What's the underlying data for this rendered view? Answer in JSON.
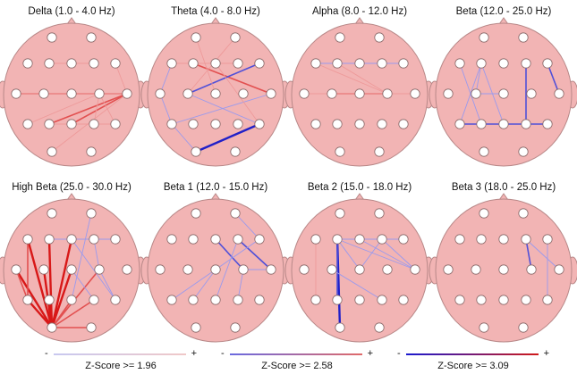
{
  "colors": {
    "head_fill": "#f2b4b4",
    "head_stroke": "#b88888",
    "electrode_fill": "#ffffff",
    "electrode_stroke": "#8a6a6a",
    "positive": "#e02020",
    "negative": "#3030d0"
  },
  "panels": [
    {
      "title": "Delta (1.0 - 4.0 Hz)",
      "connections": [
        {
          "a": "T3",
          "b": "T4",
          "sign": "pos",
          "weight": 2
        },
        {
          "a": "T3",
          "b": "C4",
          "sign": "pos",
          "weight": 1
        },
        {
          "a": "C3",
          "b": "T4",
          "sign": "pos",
          "weight": 1
        },
        {
          "a": "T5",
          "b": "C4",
          "sign": "pos",
          "weight": 1
        },
        {
          "a": "P3",
          "b": "T4",
          "sign": "pos",
          "weight": 2
        },
        {
          "a": "Pz",
          "b": "T4",
          "sign": "pos",
          "weight": 2
        },
        {
          "a": "O1",
          "b": "T4",
          "sign": "pos",
          "weight": 1
        },
        {
          "a": "P4",
          "b": "C4",
          "sign": "pos",
          "weight": 1
        },
        {
          "a": "T6",
          "b": "C4",
          "sign": "pos",
          "weight": 1
        },
        {
          "a": "F3",
          "b": "F4",
          "sign": "pos",
          "weight": 1
        },
        {
          "a": "P3",
          "b": "T6",
          "sign": "pos",
          "weight": 1
        },
        {
          "a": "F8",
          "b": "T4",
          "sign": "pos",
          "weight": 1
        }
      ]
    },
    {
      "title": "Theta (4.0 - 8.0 Hz)",
      "connections": [
        {
          "a": "F3",
          "b": "T4",
          "sign": "pos",
          "weight": 2
        },
        {
          "a": "F7",
          "b": "F4",
          "sign": "pos",
          "weight": 1
        },
        {
          "a": "Fp2",
          "b": "C3",
          "sign": "pos",
          "weight": 1
        },
        {
          "a": "F8",
          "b": "C3",
          "sign": "neg",
          "weight": 2
        },
        {
          "a": "T4",
          "b": "T5",
          "sign": "neg",
          "weight": 1
        },
        {
          "a": "T6",
          "b": "O1",
          "sign": "neg",
          "weight": 3
        },
        {
          "a": "F7",
          "b": "T3",
          "sign": "neg",
          "weight": 1
        },
        {
          "a": "T3",
          "b": "T5",
          "sign": "neg",
          "weight": 1
        },
        {
          "a": "C3",
          "b": "T6",
          "sign": "neg",
          "weight": 1
        },
        {
          "a": "T5",
          "b": "O1",
          "sign": "neg",
          "weight": 1
        },
        {
          "a": "Fp1",
          "b": "Cz",
          "sign": "pos",
          "weight": 1
        },
        {
          "a": "Fz",
          "b": "T6",
          "sign": "pos",
          "weight": 1
        }
      ]
    },
    {
      "title": "Alpha (8.0 - 12.0 Hz)",
      "connections": [
        {
          "a": "F7",
          "b": "F8",
          "sign": "neg",
          "weight": 1
        },
        {
          "a": "T3",
          "b": "Cz",
          "sign": "pos",
          "weight": 1
        },
        {
          "a": "C3",
          "b": "T4",
          "sign": "pos",
          "weight": 1
        },
        {
          "a": "T3",
          "b": "C4",
          "sign": "pos",
          "weight": 1
        },
        {
          "a": "C3",
          "b": "C4",
          "sign": "pos",
          "weight": 2
        },
        {
          "a": "Cz",
          "b": "T4",
          "sign": "pos",
          "weight": 1
        },
        {
          "a": "F3",
          "b": "C4",
          "sign": "pos",
          "weight": 1
        },
        {
          "a": "T3",
          "b": "T4",
          "sign": "pos",
          "weight": 1
        },
        {
          "a": "F7",
          "b": "C4",
          "sign": "pos",
          "weight": 1
        }
      ]
    },
    {
      "title": "Beta (12.0 - 25.0 Hz)",
      "connections": [
        {
          "a": "F3",
          "b": "T5",
          "sign": "neg",
          "weight": 1
        },
        {
          "a": "F3",
          "b": "Pz",
          "sign": "neg",
          "weight": 1
        },
        {
          "a": "F3",
          "b": "C3",
          "sign": "neg",
          "weight": 1
        },
        {
          "a": "F4",
          "b": "P4",
          "sign": "neg",
          "weight": 2
        },
        {
          "a": "F8",
          "b": "T4",
          "sign": "neg",
          "weight": 2
        },
        {
          "a": "T5",
          "b": "T6",
          "sign": "neg",
          "weight": 2
        },
        {
          "a": "C3",
          "b": "Cz",
          "sign": "neg",
          "weight": 1
        },
        {
          "a": "F7",
          "b": "P3",
          "sign": "neg",
          "weight": 1
        }
      ]
    },
    {
      "title": "High Beta (25.0 - 30.0 Hz)",
      "connections": [
        {
          "a": "O1",
          "b": "F7",
          "sign": "pos",
          "weight": 3
        },
        {
          "a": "O1",
          "b": "F3",
          "sign": "pos",
          "weight": 3
        },
        {
          "a": "O1",
          "b": "Fz",
          "sign": "pos",
          "weight": 3
        },
        {
          "a": "O1",
          "b": "T3",
          "sign": "pos",
          "weight": 3
        },
        {
          "a": "O1",
          "b": "C3",
          "sign": "pos",
          "weight": 3
        },
        {
          "a": "O1",
          "b": "Cz",
          "sign": "pos",
          "weight": 3
        },
        {
          "a": "O1",
          "b": "T5",
          "sign": "pos",
          "weight": 3
        },
        {
          "a": "O1",
          "b": "P3",
          "sign": "pos",
          "weight": 3
        },
        {
          "a": "O1",
          "b": "Pz",
          "sign": "pos",
          "weight": 2
        },
        {
          "a": "O1",
          "b": "P4",
          "sign": "pos",
          "weight": 2
        },
        {
          "a": "O1",
          "b": "C4",
          "sign": "pos",
          "weight": 2
        },
        {
          "a": "O1",
          "b": "O2",
          "sign": "pos",
          "weight": 2
        },
        {
          "a": "T3",
          "b": "T5",
          "sign": "pos",
          "weight": 2
        },
        {
          "a": "F7",
          "b": "T5",
          "sign": "pos",
          "weight": 2
        },
        {
          "a": "F3",
          "b": "F8",
          "sign": "neg",
          "weight": 1
        },
        {
          "a": "Fz",
          "b": "T6",
          "sign": "neg",
          "weight": 1
        },
        {
          "a": "F4",
          "b": "C4",
          "sign": "neg",
          "weight": 1
        },
        {
          "a": "C4",
          "b": "T6",
          "sign": "neg",
          "weight": 1
        },
        {
          "a": "Cz",
          "b": "P4",
          "sign": "neg",
          "weight": 1
        },
        {
          "a": "Fp2",
          "b": "Pz",
          "sign": "neg",
          "weight": 1
        }
      ]
    },
    {
      "title": "Beta 1 (12.0 - 15.0 Hz)",
      "connections": [
        {
          "a": "Fz",
          "b": "C4",
          "sign": "neg",
          "weight": 2
        },
        {
          "a": "F4",
          "b": "T4",
          "sign": "neg",
          "weight": 2
        },
        {
          "a": "C4",
          "b": "T4",
          "sign": "neg",
          "weight": 1
        },
        {
          "a": "Cz",
          "b": "T5",
          "sign": "neg",
          "weight": 1
        },
        {
          "a": "Cz",
          "b": "P3",
          "sign": "neg",
          "weight": 1
        },
        {
          "a": "F8",
          "b": "Cz",
          "sign": "neg",
          "weight": 1
        },
        {
          "a": "F4",
          "b": "Pz",
          "sign": "neg",
          "weight": 1
        },
        {
          "a": "C4",
          "b": "P4",
          "sign": "neg",
          "weight": 1
        },
        {
          "a": "Fp2",
          "b": "F8",
          "sign": "neg",
          "weight": 1
        }
      ]
    },
    {
      "title": "Beta 2 (15.0 - 18.0 Hz)",
      "connections": [
        {
          "a": "F3",
          "b": "O1",
          "sign": "neg",
          "weight": 3
        },
        {
          "a": "F3",
          "b": "P3",
          "sign": "neg",
          "weight": 2
        },
        {
          "a": "F3",
          "b": "Cz",
          "sign": "neg",
          "weight": 1
        },
        {
          "a": "F3",
          "b": "T4",
          "sign": "neg",
          "weight": 1
        },
        {
          "a": "F3",
          "b": "F8",
          "sign": "neg",
          "weight": 1
        },
        {
          "a": "F4",
          "b": "Cz",
          "sign": "neg",
          "weight": 1
        },
        {
          "a": "F4",
          "b": "T4",
          "sign": "neg",
          "weight": 1
        },
        {
          "a": "C3",
          "b": "P4",
          "sign": "neg",
          "weight": 1
        },
        {
          "a": "F7",
          "b": "T5",
          "sign": "pos",
          "weight": 1
        },
        {
          "a": "Fz",
          "b": "T4",
          "sign": "neg",
          "weight": 1
        }
      ]
    },
    {
      "title": "Beta 3 (18.0 - 25.0 Hz)",
      "connections": [
        {
          "a": "F4",
          "b": "C4",
          "sign": "neg",
          "weight": 2
        },
        {
          "a": "F4",
          "b": "T4",
          "sign": "neg",
          "weight": 1
        },
        {
          "a": "F8",
          "b": "T6",
          "sign": "neg",
          "weight": 1
        }
      ]
    }
  ],
  "legend": [
    {
      "minus": "-",
      "plus": "+",
      "label": "Z-Score >= 1.96"
    },
    {
      "minus": "-",
      "plus": "+",
      "label": "Z-Score >= 2.58"
    },
    {
      "minus": "-",
      "plus": "+",
      "label": "Z-Score >= 3.09"
    }
  ]
}
